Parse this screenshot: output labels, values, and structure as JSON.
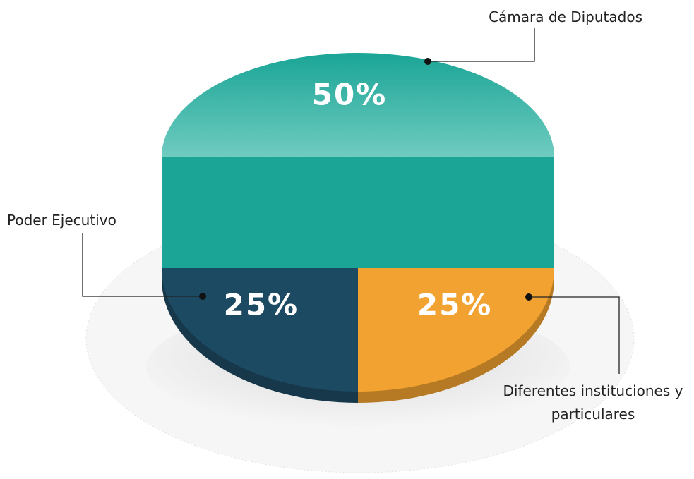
{
  "chart_data": {
    "type": "pie",
    "categories": [
      "Cámara de Diputados",
      "Poder Ejecutivo",
      "Diferentes instituciones y particulares"
    ],
    "values": [
      50,
      25,
      25
    ],
    "value_labels": [
      "50%",
      "25%",
      "25%"
    ],
    "colors": [
      "#1aa596",
      "#1d4a63",
      "#f2a230"
    ]
  }
}
